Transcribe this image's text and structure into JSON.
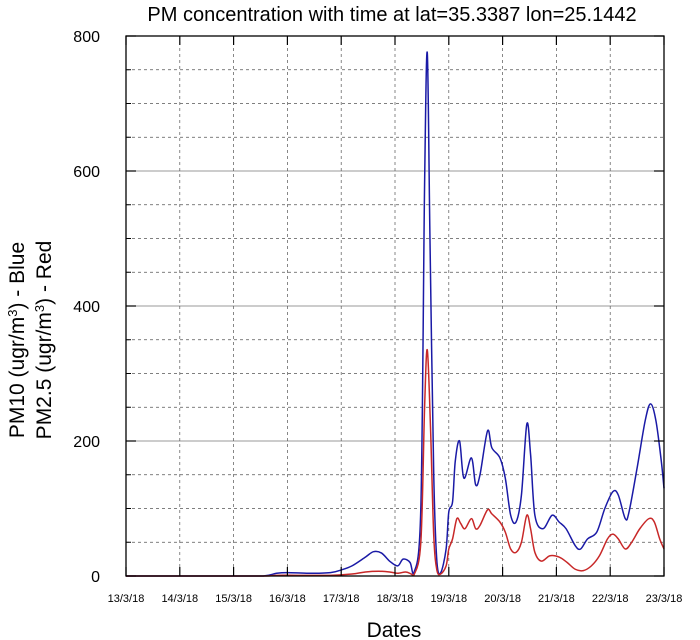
{
  "chart_data": {
    "type": "line",
    "title": "PM concentration with time at  lat=35.3387 lon=25.1442",
    "xlabel": "Dates",
    "ylabel": {
      "line1": {
        "pre": "PM10 (ugr/m",
        "sup": "3",
        "post": ") - Blue"
      },
      "line2": {
        "pre": "PM2.5 (ugr/m",
        "sup": "3",
        "post": ") - Red"
      }
    },
    "categories": [
      "13/3/18",
      "14/3/18",
      "15/3/18",
      "16/3/18",
      "17/3/18",
      "18/3/18",
      "19/3/18",
      "20/3/18",
      "21/3/18",
      "22/3/18",
      "23/3/18"
    ],
    "xlim": [
      0,
      10
    ],
    "ylim": [
      0,
      800
    ],
    "yticks": [
      "0",
      "200",
      "400",
      "600",
      "800"
    ],
    "grid": true,
    "colors": {
      "pm10": "#1a1aa6",
      "pm25": "#c82828"
    },
    "series": [
      {
        "name": "PM10",
        "color": "#1a1aa6",
        "points": [
          [
            0,
            0
          ],
          [
            1,
            0
          ],
          [
            2,
            0
          ],
          [
            2.55,
            0
          ],
          [
            2.8,
            4
          ],
          [
            3.0,
            5
          ],
          [
            3.4,
            4
          ],
          [
            3.8,
            5
          ],
          [
            4.0,
            9
          ],
          [
            4.2,
            15
          ],
          [
            4.45,
            28
          ],
          [
            4.6,
            36
          ],
          [
            4.75,
            34
          ],
          [
            4.9,
            22
          ],
          [
            5.05,
            15
          ],
          [
            5.15,
            25
          ],
          [
            5.28,
            20
          ],
          [
            5.35,
            4
          ],
          [
            5.48,
            100
          ],
          [
            5.55,
            580
          ],
          [
            5.6,
            775
          ],
          [
            5.65,
            500
          ],
          [
            5.72,
            150
          ],
          [
            5.78,
            20
          ],
          [
            5.85,
            5
          ],
          [
            5.95,
            40
          ],
          [
            6.0,
            95
          ],
          [
            6.07,
            110
          ],
          [
            6.12,
            170
          ],
          [
            6.2,
            200
          ],
          [
            6.28,
            145
          ],
          [
            6.42,
            175
          ],
          [
            6.5,
            135
          ],
          [
            6.58,
            150
          ],
          [
            6.72,
            215
          ],
          [
            6.8,
            190
          ],
          [
            6.95,
            175
          ],
          [
            7.05,
            145
          ],
          [
            7.15,
            90
          ],
          [
            7.25,
            80
          ],
          [
            7.35,
            120
          ],
          [
            7.45,
            225
          ],
          [
            7.52,
            180
          ],
          [
            7.6,
            90
          ],
          [
            7.75,
            70
          ],
          [
            7.92,
            90
          ],
          [
            8.05,
            80
          ],
          [
            8.18,
            70
          ],
          [
            8.35,
            45
          ],
          [
            8.45,
            40
          ],
          [
            8.58,
            55
          ],
          [
            8.75,
            65
          ],
          [
            8.9,
            100
          ],
          [
            9.05,
            125
          ],
          [
            9.15,
            120
          ],
          [
            9.28,
            85
          ],
          [
            9.35,
            95
          ],
          [
            9.5,
            160
          ],
          [
            9.65,
            230
          ],
          [
            9.75,
            255
          ],
          [
            9.85,
            230
          ],
          [
            9.95,
            170
          ],
          [
            10.0,
            130
          ]
        ]
      },
      {
        "name": "PM2.5",
        "color": "#c82828",
        "points": [
          [
            0,
            0
          ],
          [
            1,
            0
          ],
          [
            2,
            0
          ],
          [
            2.6,
            0
          ],
          [
            2.8,
            1
          ],
          [
            3.2,
            1
          ],
          [
            3.8,
            1
          ],
          [
            4.2,
            3
          ],
          [
            4.45,
            6
          ],
          [
            4.7,
            7
          ],
          [
            4.9,
            6
          ],
          [
            5.05,
            4
          ],
          [
            5.2,
            6
          ],
          [
            5.3,
            3
          ],
          [
            5.35,
            1
          ],
          [
            5.48,
            50
          ],
          [
            5.55,
            250
          ],
          [
            5.6,
            335
          ],
          [
            5.66,
            220
          ],
          [
            5.72,
            60
          ],
          [
            5.78,
            8
          ],
          [
            5.85,
            3
          ],
          [
            5.95,
            15
          ],
          [
            6.0,
            40
          ],
          [
            6.07,
            55
          ],
          [
            6.15,
            85
          ],
          [
            6.22,
            78
          ],
          [
            6.3,
            70
          ],
          [
            6.42,
            85
          ],
          [
            6.5,
            70
          ],
          [
            6.58,
            75
          ],
          [
            6.72,
            98
          ],
          [
            6.8,
            92
          ],
          [
            6.95,
            80
          ],
          [
            7.05,
            65
          ],
          [
            7.15,
            40
          ],
          [
            7.25,
            35
          ],
          [
            7.35,
            50
          ],
          [
            7.45,
            90
          ],
          [
            7.52,
            70
          ],
          [
            7.6,
            35
          ],
          [
            7.72,
            22
          ],
          [
            7.88,
            30
          ],
          [
            8.05,
            28
          ],
          [
            8.2,
            20
          ],
          [
            8.35,
            10
          ],
          [
            8.5,
            8
          ],
          [
            8.65,
            15
          ],
          [
            8.8,
            30
          ],
          [
            8.95,
            55
          ],
          [
            9.05,
            62
          ],
          [
            9.15,
            55
          ],
          [
            9.28,
            40
          ],
          [
            9.4,
            50
          ],
          [
            9.55,
            70
          ],
          [
            9.72,
            85
          ],
          [
            9.82,
            80
          ],
          [
            9.92,
            55
          ],
          [
            10.0,
            40
          ]
        ]
      }
    ]
  }
}
